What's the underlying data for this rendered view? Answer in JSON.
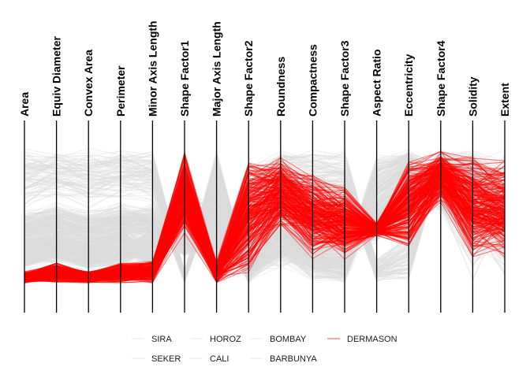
{
  "chart_data": {
    "type": "parallel-coordinates",
    "axes": [
      "Area",
      "Equiv Diameter",
      "Convex Area",
      "Perimeter",
      "Minor Axis Length",
      "Shape Factor1",
      "Major Axis Length",
      "Shape Factor2",
      "Roundness",
      "Compactness",
      "Shape Factor3",
      "Aspect Ratio",
      "Eccentricity",
      "Shape Factor4",
      "Solidity",
      "Extent"
    ],
    "scale": "each axis normalized 0-1",
    "highlight_color": "#ff0000",
    "other_color": "#dcdcdc",
    "legend": {
      "position": "bottom",
      "entries": [
        {
          "name": "SIRA",
          "color": "#dcdcdc"
        },
        {
          "name": "HOROZ",
          "color": "#dcdcdc"
        },
        {
          "name": "BOMBAY",
          "color": "#dcdcdc"
        },
        {
          "name": "DERMASON",
          "color": "#ff0000"
        },
        {
          "name": "SEKER",
          "color": "#dcdcdc"
        },
        {
          "name": "CALI",
          "color": "#dcdcdc"
        },
        {
          "name": "BARBUNYA",
          "color": "#dcdcdc"
        }
      ]
    },
    "classes": [
      {
        "name": "DERMASON",
        "highlight": true,
        "ranges": [
          [
            0,
            0.09
          ],
          [
            0,
            0.16
          ],
          [
            0,
            0.09
          ],
          [
            0,
            0.16
          ],
          [
            0,
            0.17
          ],
          [
            0.35,
            1
          ],
          [
            0,
            0.17
          ],
          [
            0.06,
            0.98
          ],
          [
            0.4,
            0.96
          ],
          [
            0.17,
            0.84
          ],
          [
            0.17,
            0.73
          ],
          [
            0.35,
            0.45
          ],
          [
            0.23,
            0.93
          ],
          [
            0.6,
            1
          ],
          [
            0.17,
            0.97
          ],
          [
            0.17,
            0.93
          ]
        ]
      },
      {
        "name": "SIRA",
        "highlight": false,
        "ranges": [
          [
            0.1,
            0.3
          ],
          [
            0.15,
            0.35
          ],
          [
            0.1,
            0.3
          ],
          [
            0.15,
            0.35
          ],
          [
            0.15,
            0.4
          ],
          [
            0.3,
            0.5
          ],
          [
            0.2,
            0.45
          ],
          [
            0.1,
            0.4
          ],
          [
            0.4,
            0.8
          ],
          [
            0.2,
            0.5
          ],
          [
            0.2,
            0.5
          ],
          [
            0.3,
            0.6
          ],
          [
            0.5,
            0.8
          ],
          [
            0.6,
            0.95
          ],
          [
            0.4,
            0.95
          ],
          [
            0.2,
            0.9
          ]
        ]
      },
      {
        "name": "SEKER",
        "highlight": false,
        "ranges": [
          [
            0.1,
            0.3
          ],
          [
            0.15,
            0.4
          ],
          [
            0.1,
            0.3
          ],
          [
            0.1,
            0.3
          ],
          [
            0.2,
            0.45
          ],
          [
            0.3,
            0.45
          ],
          [
            0.05,
            0.3
          ],
          [
            0.4,
            0.9
          ],
          [
            0.7,
            1
          ],
          [
            0.6,
            1
          ],
          [
            0.6,
            1
          ],
          [
            0,
            0.2
          ],
          [
            0,
            0.4
          ],
          [
            0.8,
            1
          ],
          [
            0.6,
            1
          ],
          [
            0.3,
            1
          ]
        ]
      },
      {
        "name": "HOROZ",
        "highlight": false,
        "ranges": [
          [
            0.15,
            0.35
          ],
          [
            0.2,
            0.4
          ],
          [
            0.15,
            0.35
          ],
          [
            0.25,
            0.45
          ],
          [
            0.05,
            0.25
          ],
          [
            0.4,
            0.7
          ],
          [
            0.35,
            0.6
          ],
          [
            0,
            0.2
          ],
          [
            0.1,
            0.5
          ],
          [
            0,
            0.3
          ],
          [
            0,
            0.25
          ],
          [
            0.6,
            1
          ],
          [
            0.8,
            1
          ],
          [
            0.5,
            0.95
          ],
          [
            0.2,
            0.9
          ],
          [
            0,
            0.6
          ]
        ]
      },
      {
        "name": "CALI",
        "highlight": false,
        "ranges": [
          [
            0.3,
            0.55
          ],
          [
            0.35,
            0.6
          ],
          [
            0.3,
            0.55
          ],
          [
            0.35,
            0.6
          ],
          [
            0.3,
            0.55
          ],
          [
            0.2,
            0.35
          ],
          [
            0.5,
            0.75
          ],
          [
            0,
            0.2
          ],
          [
            0.2,
            0.5
          ],
          [
            0.05,
            0.3
          ],
          [
            0,
            0.3
          ],
          [
            0.5,
            0.8
          ],
          [
            0.7,
            0.95
          ],
          [
            0.5,
            0.9
          ],
          [
            0.3,
            0.9
          ],
          [
            0.2,
            0.8
          ]
        ]
      },
      {
        "name": "BARBUNYA",
        "highlight": false,
        "ranges": [
          [
            0.25,
            0.5
          ],
          [
            0.3,
            0.55
          ],
          [
            0.25,
            0.5
          ],
          [
            0.3,
            0.55
          ],
          [
            0.35,
            0.6
          ],
          [
            0.2,
            0.35
          ],
          [
            0.3,
            0.55
          ],
          [
            0.1,
            0.35
          ],
          [
            0.1,
            0.5
          ],
          [
            0.2,
            0.5
          ],
          [
            0.2,
            0.5
          ],
          [
            0.3,
            0.55
          ],
          [
            0.5,
            0.8
          ],
          [
            0.5,
            0.9
          ],
          [
            0,
            0.9
          ],
          [
            0.3,
            1
          ]
        ]
      },
      {
        "name": "BOMBAY",
        "highlight": false,
        "ranges": [
          [
            0.55,
            1
          ],
          [
            0.6,
            1
          ],
          [
            0.55,
            1
          ],
          [
            0.6,
            1
          ],
          [
            0.6,
            1
          ],
          [
            0,
            0.1
          ],
          [
            0.6,
            1
          ],
          [
            0,
            0.1
          ],
          [
            0.4,
            0.9
          ],
          [
            0.3,
            0.6
          ],
          [
            0.3,
            0.6
          ],
          [
            0.3,
            0.6
          ],
          [
            0.5,
            0.8
          ],
          [
            0.7,
            1
          ],
          [
            0.6,
            1
          ],
          [
            0.3,
            0.9
          ]
        ]
      }
    ]
  }
}
